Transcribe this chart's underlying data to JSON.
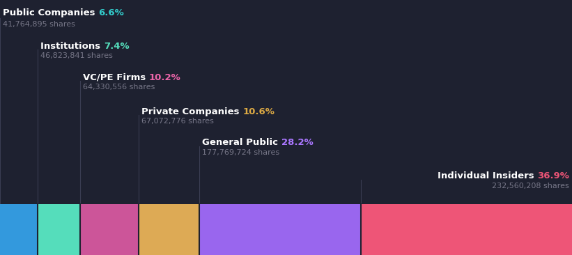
{
  "background_color": "#1e2130",
  "segments": [
    {
      "label": "Public Companies",
      "pct": "6.6%",
      "shares": "41,764,895 shares",
      "pct_value": 6.6,
      "bar_color": "#3399dd",
      "pct_color": "#33cccc",
      "label_color": "#ffffff",
      "shares_color": "#777788"
    },
    {
      "label": "Institutions",
      "pct": "7.4%",
      "shares": "46,823,841 shares",
      "pct_value": 7.4,
      "bar_color": "#55ddbb",
      "pct_color": "#55ddbb",
      "label_color": "#ffffff",
      "shares_color": "#777788"
    },
    {
      "label": "VC/PE Firms",
      "pct": "10.2%",
      "shares": "64,330,556 shares",
      "pct_value": 10.2,
      "bar_color": "#cc5599",
      "pct_color": "#ee66aa",
      "label_color": "#ffffff",
      "shares_color": "#777788"
    },
    {
      "label": "Private Companies",
      "pct": "10.6%",
      "shares": "67,072,776 shares",
      "pct_value": 10.6,
      "bar_color": "#ddaa55",
      "pct_color": "#ddaa44",
      "label_color": "#ffffff",
      "shares_color": "#777788"
    },
    {
      "label": "General Public",
      "pct": "28.2%",
      "shares": "177,769,724 shares",
      "pct_value": 28.2,
      "bar_color": "#9966ee",
      "pct_color": "#aa77ff",
      "label_color": "#ffffff",
      "shares_color": "#777788"
    },
    {
      "label": "Individual Insiders",
      "pct": "36.9%",
      "shares": "232,560,208 shares",
      "pct_value": 36.9,
      "bar_color": "#ee5577",
      "pct_color": "#ee5577",
      "label_color": "#ffffff",
      "shares_color": "#777788"
    }
  ]
}
